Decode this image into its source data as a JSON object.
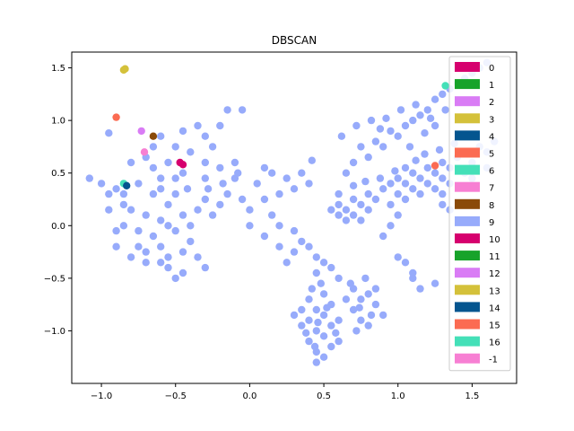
{
  "chart_data": {
    "type": "scatter",
    "title": "DBSCAN",
    "xlabel": "",
    "ylabel": "",
    "xlim": [
      -1.2,
      1.8
    ],
    "ylim": [
      -1.5,
      1.65
    ],
    "xticks": [
      "−1.0",
      "−0.5",
      "0.0",
      "0.5",
      "1.0",
      "1.5"
    ],
    "xtick_values": [
      -1.0,
      -0.5,
      0.0,
      0.5,
      1.0,
      1.5
    ],
    "yticks": [
      "−1.0",
      "−0.5",
      "0.0",
      "0.5",
      "1.0",
      "1.5"
    ],
    "ytick_values": [
      -1.0,
      -0.5,
      0.0,
      0.5,
      1.0,
      1.5
    ],
    "grid": false,
    "legend_position": "top-right",
    "legend": [
      {
        "label": "0",
        "color": "#d6006e"
      },
      {
        "label": "1",
        "color": "#17a32a"
      },
      {
        "label": "2",
        "color": "#d97cf5"
      },
      {
        "label": "3",
        "color": "#d4c13a"
      },
      {
        "label": "4",
        "color": "#04558f"
      },
      {
        "label": "5",
        "color": "#fb6b52"
      },
      {
        "label": "6",
        "color": "#44e0b8"
      },
      {
        "label": "7",
        "color": "#f77fd3"
      },
      {
        "label": "8",
        "color": "#8a4a09"
      },
      {
        "label": "9",
        "color": "#97abfb"
      },
      {
        "label": "10",
        "color": "#d6006e"
      },
      {
        "label": "11",
        "color": "#17a32a"
      },
      {
        "label": "12",
        "color": "#d97cf5"
      },
      {
        "label": "13",
        "color": "#d4c13a"
      },
      {
        "label": "14",
        "color": "#04558f"
      },
      {
        "label": "15",
        "color": "#fb6b52"
      },
      {
        "label": "16",
        "color": "#44e0b8"
      },
      {
        "label": "-1",
        "color": "#f77fd3"
      }
    ],
    "series": [
      {
        "cluster": "9",
        "color": "#97abfb",
        "points": [
          [
            -0.55,
            0.0
          ],
          [
            -0.6,
            0.05
          ],
          [
            -0.5,
            -0.05
          ],
          [
            -0.45,
            0.1
          ],
          [
            -0.65,
            -0.1
          ],
          [
            -0.4,
            0.0
          ],
          [
            -0.7,
            0.1
          ],
          [
            -0.55,
            0.2
          ],
          [
            -0.35,
            0.15
          ],
          [
            -0.6,
            -0.2
          ],
          [
            -0.5,
            0.3
          ],
          [
            -0.75,
            -0.05
          ],
          [
            -0.45,
            -0.25
          ],
          [
            -0.3,
            0.25
          ],
          [
            -0.8,
            0.15
          ],
          [
            -0.65,
            0.3
          ],
          [
            -0.4,
            -0.15
          ],
          [
            -0.55,
            -0.3
          ],
          [
            -0.25,
            0.1
          ],
          [
            -0.7,
            -0.25
          ],
          [
            -0.35,
            -0.3
          ],
          [
            -0.5,
            0.45
          ],
          [
            -0.6,
            0.45
          ],
          [
            -0.2,
            0.2
          ],
          [
            -0.15,
            0.3
          ],
          [
            -0.85,
            0.3
          ],
          [
            -0.9,
            0.35
          ],
          [
            -1.0,
            0.4
          ],
          [
            -1.08,
            0.45
          ],
          [
            -0.95,
            0.3
          ],
          [
            -0.85,
            0.0
          ],
          [
            -0.9,
            -0.05
          ],
          [
            -0.65,
            0.55
          ],
          [
            -0.55,
            0.6
          ],
          [
            -0.45,
            0.5
          ],
          [
            -0.3,
            0.45
          ],
          [
            -0.2,
            0.55
          ],
          [
            -0.1,
            0.45
          ],
          [
            0.05,
            0.4
          ],
          [
            -0.05,
            0.25
          ],
          [
            0.0,
            0.15
          ],
          [
            -0.3,
            0.6
          ],
          [
            -0.4,
            0.7
          ],
          [
            -0.25,
            0.75
          ],
          [
            -0.3,
            0.85
          ],
          [
            -0.35,
            0.95
          ],
          [
            -0.45,
            0.9
          ],
          [
            -0.2,
            0.95
          ],
          [
            -0.15,
            1.1
          ],
          [
            -0.05,
            1.1
          ],
          [
            -0.55,
            -0.4
          ],
          [
            -0.45,
            -0.45
          ],
          [
            -0.6,
            -0.35
          ],
          [
            -0.5,
            -0.5
          ],
          [
            -0.7,
            -0.35
          ],
          [
            -0.3,
            -0.4
          ],
          [
            -0.8,
            -0.3
          ],
          [
            -0.75,
            0.4
          ],
          [
            -0.8,
            0.6
          ],
          [
            -0.7,
            0.65
          ],
          [
            -0.85,
            0.2
          ],
          [
            -0.95,
            0.15
          ],
          [
            -0.9,
            -0.2
          ],
          [
            -0.75,
            -0.2
          ],
          [
            -0.6,
            0.35
          ],
          [
            -0.42,
            0.35
          ],
          [
            -0.28,
            0.35
          ],
          [
            -0.18,
            0.4
          ],
          [
            -0.08,
            0.5
          ],
          [
            0.1,
            0.55
          ],
          [
            0.15,
            0.5
          ],
          [
            -0.1,
            0.6
          ],
          [
            0.25,
            0.45
          ],
          [
            0.35,
            0.5
          ],
          [
            0.3,
            0.35
          ],
          [
            0.2,
            0.3
          ],
          [
            0.1,
            0.25
          ],
          [
            0.0,
            0.0
          ],
          [
            0.1,
            -0.1
          ],
          [
            0.2,
            -0.2
          ],
          [
            0.3,
            -0.25
          ],
          [
            0.35,
            -0.15
          ],
          [
            0.4,
            -0.2
          ],
          [
            0.25,
            -0.35
          ],
          [
            0.45,
            -0.3
          ],
          [
            0.5,
            -0.35
          ],
          [
            0.55,
            -0.4
          ],
          [
            0.45,
            -0.45
          ],
          [
            0.6,
            -0.5
          ],
          [
            0.2,
            0.0
          ],
          [
            0.15,
            0.1
          ],
          [
            0.3,
            -0.05
          ],
          [
            -0.5,
            0.75
          ],
          [
            -0.65,
            0.75
          ],
          [
            -0.95,
            0.88
          ],
          [
            -0.6,
            0.85
          ],
          [
            0.42,
            0.62
          ],
          [
            0.4,
            0.4
          ],
          [
            0.45,
            -0.8
          ],
          [
            0.5,
            -0.85
          ],
          [
            0.4,
            -0.9
          ],
          [
            0.55,
            -0.95
          ],
          [
            0.45,
            -1.0
          ],
          [
            0.5,
            -1.05
          ],
          [
            0.4,
            -1.1
          ],
          [
            0.55,
            -1.15
          ],
          [
            0.45,
            -1.2
          ],
          [
            0.5,
            -1.25
          ],
          [
            0.35,
            -0.95
          ],
          [
            0.6,
            -0.9
          ],
          [
            0.4,
            -0.7
          ],
          [
            0.5,
            -0.65
          ],
          [
            0.55,
            -0.75
          ],
          [
            0.35,
            -0.8
          ],
          [
            0.3,
            -0.85
          ],
          [
            0.6,
            -1.1
          ],
          [
            0.45,
            -1.3
          ],
          [
            0.48,
            -0.55
          ],
          [
            0.42,
            -0.6
          ],
          [
            0.52,
            -0.78
          ],
          [
            0.46,
            -0.92
          ],
          [
            0.38,
            -1.02
          ],
          [
            0.58,
            -1.02
          ],
          [
            0.44,
            -1.15
          ],
          [
            0.7,
            -0.6
          ],
          [
            0.75,
            -0.7
          ],
          [
            0.8,
            -0.65
          ],
          [
            0.7,
            -0.8
          ],
          [
            0.75,
            -0.9
          ],
          [
            0.8,
            -0.95
          ],
          [
            0.85,
            -0.75
          ],
          [
            0.9,
            -0.85
          ],
          [
            0.72,
            -1.0
          ],
          [
            0.68,
            -0.55
          ],
          [
            0.78,
            -0.5
          ],
          [
            0.65,
            -0.7
          ],
          [
            0.85,
            -0.6
          ],
          [
            0.82,
            -0.85
          ],
          [
            0.74,
            -0.78
          ],
          [
            0.6,
            0.1
          ],
          [
            0.65,
            0.15
          ],
          [
            0.7,
            0.1
          ],
          [
            0.75,
            0.2
          ],
          [
            0.8,
            0.15
          ],
          [
            0.7,
            0.25
          ],
          [
            0.65,
            0.05
          ],
          [
            0.6,
            0.2
          ],
          [
            0.55,
            0.15
          ],
          [
            0.85,
            0.25
          ],
          [
            0.75,
            0.05
          ],
          [
            0.8,
            0.3
          ],
          [
            0.9,
            0.35
          ],
          [
            0.95,
            0.4
          ],
          [
            1.0,
            0.45
          ],
          [
            1.05,
            0.4
          ],
          [
            1.1,
            0.5
          ],
          [
            1.0,
            0.3
          ],
          [
            1.15,
            0.45
          ],
          [
            1.2,
            0.55
          ],
          [
            1.1,
            0.35
          ],
          [
            1.25,
            0.5
          ],
          [
            1.3,
            0.6
          ],
          [
            1.35,
            0.55
          ],
          [
            1.4,
            0.65
          ],
          [
            1.45,
            0.7
          ],
          [
            1.5,
            0.6
          ],
          [
            1.55,
            0.75
          ],
          [
            1.6,
            0.7
          ],
          [
            1.65,
            0.8
          ],
          [
            1.2,
            0.4
          ],
          [
            1.3,
            0.45
          ],
          [
            1.05,
            0.25
          ],
          [
            0.95,
            0.2
          ],
          [
            1.15,
            0.3
          ],
          [
            1.25,
            0.35
          ],
          [
            1.35,
            0.4
          ],
          [
            1.45,
            0.5
          ],
          [
            1.5,
            0.45
          ],
          [
            1.6,
            0.55
          ],
          [
            1.12,
            0.62
          ],
          [
            1.05,
            0.55
          ],
          [
            0.98,
            0.52
          ],
          [
            1.18,
            0.68
          ],
          [
            1.28,
            0.72
          ],
          [
            1.38,
            0.78
          ],
          [
            1.42,
            0.85
          ],
          [
            0.65,
            0.5
          ],
          [
            0.7,
            0.6
          ],
          [
            0.75,
            0.75
          ],
          [
            0.8,
            0.65
          ],
          [
            0.85,
            0.8
          ],
          [
            0.9,
            0.75
          ],
          [
            0.95,
            0.9
          ],
          [
            1.0,
            0.85
          ],
          [
            1.05,
            0.95
          ],
          [
            1.1,
            1.0
          ],
          [
            1.15,
            1.05
          ],
          [
            1.2,
            1.1
          ],
          [
            1.25,
            1.2
          ],
          [
            1.3,
            1.25
          ],
          [
            1.35,
            1.3
          ],
          [
            1.4,
            1.35
          ],
          [
            1.45,
            1.4
          ],
          [
            1.5,
            1.45
          ],
          [
            1.55,
            1.5
          ],
          [
            1.6,
            1.55
          ],
          [
            0.62,
            0.85
          ],
          [
            0.72,
            0.95
          ],
          [
            0.82,
            1.0
          ],
          [
            0.92,
            1.02
          ],
          [
            1.02,
            1.1
          ],
          [
            1.12,
            1.15
          ],
          [
            1.22,
            1.02
          ],
          [
            1.32,
            1.1
          ],
          [
            1.08,
            0.75
          ],
          [
            0.88,
            0.92
          ],
          [
            1.18,
            0.88
          ],
          [
            1.25,
            0.95
          ],
          [
            0.78,
            0.42
          ],
          [
            0.88,
            0.45
          ],
          [
            0.7,
            0.38
          ],
          [
            0.6,
            0.3
          ],
          [
            1.0,
            -0.3
          ],
          [
            1.05,
            -0.35
          ],
          [
            1.1,
            -0.5
          ],
          [
            1.15,
            -0.6
          ],
          [
            1.1,
            -0.45
          ],
          [
            1.25,
            -0.55
          ],
          [
            0.9,
            -0.1
          ],
          [
            0.95,
            0.0
          ],
          [
            1.0,
            0.1
          ],
          [
            1.3,
            0.2
          ],
          [
            1.35,
            0.15
          ],
          [
            1.3,
            0.3
          ]
        ]
      },
      {
        "cluster": "0",
        "color": "#d6006e",
        "points": [
          [
            -0.47,
            0.6
          ],
          [
            -0.45,
            0.58
          ]
        ]
      },
      {
        "cluster": "3",
        "color": "#d4c13a",
        "points": [
          [
            -0.85,
            1.48
          ],
          [
            -0.84,
            1.49
          ]
        ]
      },
      {
        "cluster": "5",
        "color": "#fb6b52",
        "points": [
          [
            -0.9,
            1.03
          ],
          [
            1.25,
            0.57
          ]
        ]
      },
      {
        "cluster": "2",
        "color": "#d97cf5",
        "points": [
          [
            -0.73,
            0.9
          ]
        ]
      },
      {
        "cluster": "8",
        "color": "#8a4a09",
        "points": [
          [
            -0.65,
            0.85
          ]
        ]
      },
      {
        "cluster": "7",
        "color": "#f77fd3",
        "points": [
          [
            -0.71,
            0.7
          ]
        ]
      },
      {
        "cluster": "6",
        "color": "#44e0b8",
        "points": [
          [
            -0.85,
            0.4
          ],
          [
            1.32,
            1.33
          ]
        ]
      },
      {
        "cluster": "4",
        "color": "#04558f",
        "points": [
          [
            -0.83,
            0.38
          ]
        ]
      }
    ]
  }
}
